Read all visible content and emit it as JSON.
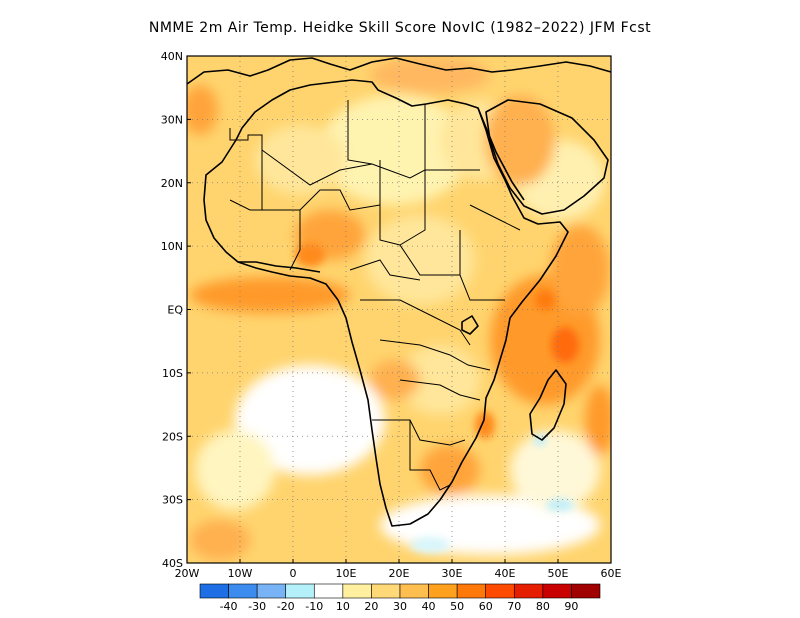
{
  "title": "NMME  2m Air Temp. Heidke Skill Score NovIC (1982–2022) JFM Fcst",
  "map": {
    "lon_range": [
      -20,
      60
    ],
    "lat_range": [
      -40,
      40
    ],
    "lat_ticks": [
      {
        "value": 40,
        "label": "40N"
      },
      {
        "value": 30,
        "label": "30N"
      },
      {
        "value": 20,
        "label": "20N"
      },
      {
        "value": 10,
        "label": "10N"
      },
      {
        "value": 0,
        "label": "EQ"
      },
      {
        "value": -10,
        "label": "10S"
      },
      {
        "value": -20,
        "label": "20S"
      },
      {
        "value": -30,
        "label": "30S"
      },
      {
        "value": -40,
        "label": "40S"
      }
    ],
    "lon_ticks": [
      {
        "value": -20,
        "label": "20W"
      },
      {
        "value": -10,
        "label": "10W"
      },
      {
        "value": 0,
        "label": "0"
      },
      {
        "value": 10,
        "label": "10E"
      },
      {
        "value": 20,
        "label": "20E"
      },
      {
        "value": 30,
        "label": "30E"
      },
      {
        "value": 40,
        "label": "40E"
      },
      {
        "value": 50,
        "label": "50E"
      },
      {
        "value": 60,
        "label": "60E"
      }
    ],
    "gridlines": "dotted"
  },
  "colorbar": {
    "colors": [
      "#1e6ee6",
      "#3c8cf0",
      "#78b4f5",
      "#b4f0fa",
      "#ffffff",
      "#fff0a0",
      "#ffd878",
      "#ffbe50",
      "#ffa01e",
      "#ff780a",
      "#ff4b00",
      "#e61e00",
      "#c80000",
      "#a00000"
    ],
    "labels": [
      "-40",
      "-30",
      "-20",
      "-10",
      "10",
      "20",
      "30",
      "40",
      "50",
      "60",
      "70",
      "80",
      "90"
    ]
  }
}
